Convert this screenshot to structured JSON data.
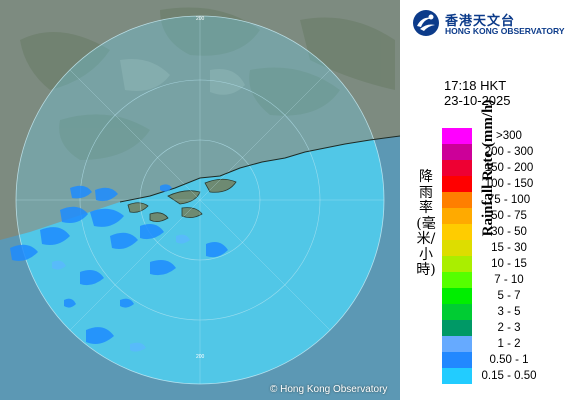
{
  "copyright": "© Hong Kong Observatory",
  "logo": {
    "icon": "hko-logo-icon",
    "chinese": "香港天文台",
    "english": "HONG KONG OBSERVATORY"
  },
  "time": "17:18 HKT",
  "date": "23-10-2025",
  "legend": {
    "title_chinese": "降雨率(毫米/小時)",
    "title_english": "Rainfall Rate (mm/h)",
    "items": [
      {
        "label": ">300",
        "color": "#ff00ff"
      },
      {
        "label": "200 - 300",
        "color": "#cc0099"
      },
      {
        "label": "150 - 200",
        "color": "#ee0033"
      },
      {
        "label": "100 - 150",
        "color": "#ff0000"
      },
      {
        "label": "75 - 100",
        "color": "#ff7f00"
      },
      {
        "label": "50 - 75",
        "color": "#ffaa00"
      },
      {
        "label": "30 - 50",
        "color": "#ffcc00"
      },
      {
        "label": "15 - 30",
        "color": "#dddd00"
      },
      {
        "label": "10 - 15",
        "color": "#aaee00"
      },
      {
        "label": "7 - 10",
        "color": "#55ff00"
      },
      {
        "label": "5 - 7",
        "color": "#00ee00"
      },
      {
        "label": "3 - 5",
        "color": "#00cc33"
      },
      {
        "label": "2 - 3",
        "color": "#009966"
      },
      {
        "label": "1 - 2",
        "color": "#66aaff"
      },
      {
        "label": "0.50 - 1",
        "color": "#2288ff"
      },
      {
        "label": "0.15 - 0.50",
        "color": "#22ccff"
      }
    ]
  },
  "map": {
    "range_ring_label": "200",
    "colors": {
      "land": "#7f8d80",
      "sea": "#5c9ab8",
      "radar_coverage": "#5fd0ec",
      "rain_echo": "#1e8cff"
    }
  }
}
